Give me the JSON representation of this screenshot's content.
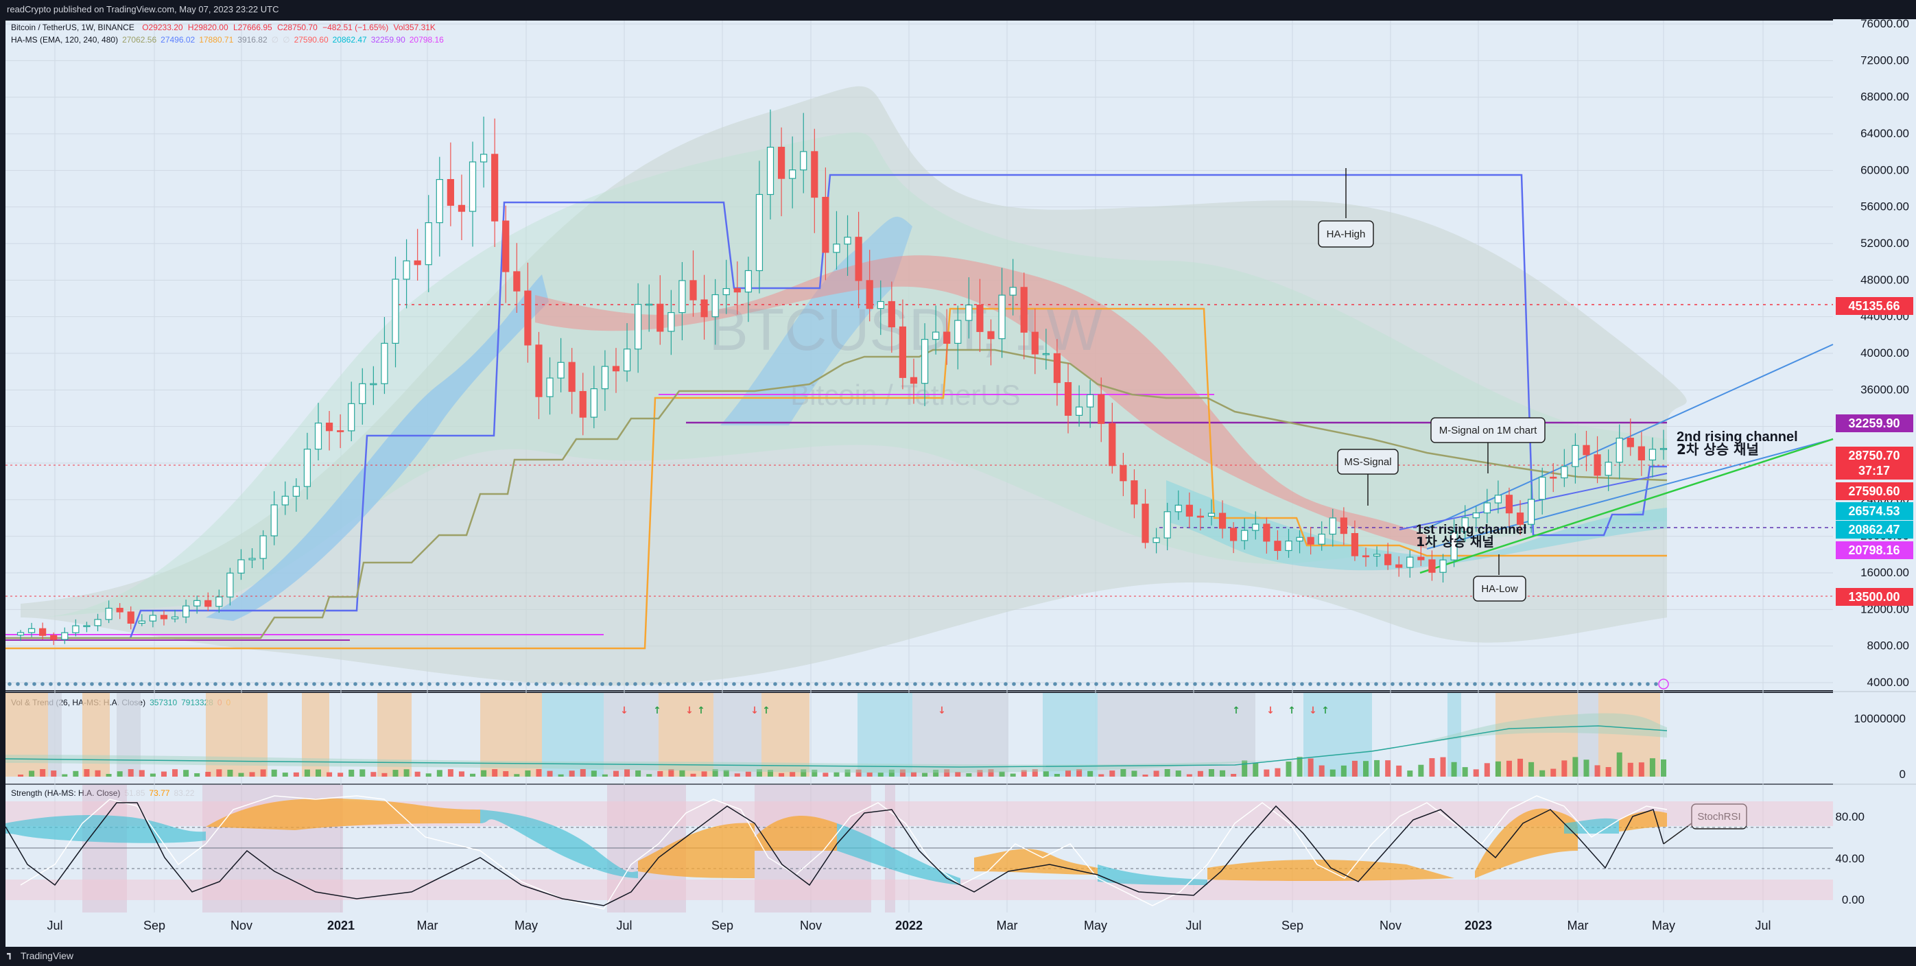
{
  "publish_line": "readCrypto published on TradingView.com, May 07, 2023 23:22 UTC",
  "footer_brand": "TradingView",
  "legend": {
    "symbol": "Bitcoin / TetherUS, 1W, BINANCE",
    "ohlc": {
      "O": "O29233.20",
      "H": "H29820.00",
      "L": "L27666.95",
      "C": "C28750.70",
      "chg": "−482.51 (−1.65%)",
      "vol": "Vol357.31K"
    },
    "hams": {
      "label": "HA-MS (EMA, 120, 240, 480)",
      "values": [
        {
          "text": "27062.56",
          "color": "#9ca067"
        },
        {
          "text": "27496.02",
          "color": "#5b7fff"
        },
        {
          "text": "17880.71",
          "color": "#f7a531"
        },
        {
          "text": "3916.82",
          "color": "#8a8f9c"
        },
        {
          "text": "∅",
          "color": "#d1d4dc"
        },
        {
          "text": "∅",
          "color": "#d1d4dc"
        },
        {
          "text": "27590.60",
          "color": "#ff5f5f"
        },
        {
          "text": "20862.47",
          "color": "#00bcd4"
        },
        {
          "text": "32259.90",
          "color": "#b84dff"
        },
        {
          "text": "20798.16",
          "color": "#e040fb"
        }
      ]
    },
    "vol_trend": {
      "label": "Vol & Trend (26, HA-MS: H.A. Close)",
      "values": [
        {
          "text": "357310",
          "color": "#26a69a"
        },
        {
          "text": "7913328",
          "color": "#26a69a"
        },
        {
          "text": "0",
          "color": "#ef5350"
        },
        {
          "text": "0",
          "color": "#ff9800"
        }
      ]
    },
    "strength": {
      "label": "Strength (HA-MS: H.A. Close)",
      "values": [
        {
          "text": "51.85",
          "color": "#d1d4dc"
        },
        {
          "text": "73.77",
          "color": "#ff9800"
        },
        {
          "text": "83.22",
          "color": "#d1d4dc"
        }
      ]
    }
  },
  "watermark": {
    "ticker": "BTCUSDT, 1W",
    "name": "Bitcoin / TetherUS"
  },
  "annotations": {
    "ha_high": "HA-High",
    "ha_low": "HA-Low",
    "ms_signal": "MS-Signal",
    "m_signal": "M-Signal on 1M chart",
    "ch2_en": "2nd rising channel",
    "ch2_ko": "2차 상승 채널",
    "ch1_en": "1st rising channel",
    "ch1_ko": "1차 상승 채널",
    "stochrsi": "StochRSI"
  },
  "chart_data": {
    "type": "candlestick",
    "title": "Bitcoin / TetherUS, 1W, BINANCE",
    "y_axis": {
      "ticks": [
        "76000.00",
        "72000.00",
        "68000.00",
        "64000.00",
        "60000.00",
        "56000.00",
        "52000.00",
        "48000.00",
        "44000.00",
        "40000.00",
        "36000.00",
        "32000.00",
        "28000.00",
        "24000.00",
        "20000.00",
        "16000.00",
        "12000.00",
        "8000.00",
        "4000.00"
      ],
      "ylim": [
        0,
        76000
      ]
    },
    "x_axis": {
      "ticks": [
        "Jul",
        "Sep",
        "Nov",
        "2021",
        "Mar",
        "May",
        "Jul",
        "Sep",
        "Nov",
        "2022",
        "Mar",
        "May",
        "Jul",
        "Sep",
        "Nov",
        "2023",
        "Mar",
        "May",
        "Jul"
      ]
    },
    "price_labels": [
      {
        "value": "45135.66",
        "color": "#f23645"
      },
      {
        "value": "32259.90",
        "color": "#9c27b0"
      },
      {
        "value": "28750.70",
        "sub": "37:17",
        "color": "#f23645"
      },
      {
        "value": "27590.60",
        "color": "#f23645"
      },
      {
        "value": "26574.53",
        "color": "#00bcd4"
      },
      {
        "value": "20862.47",
        "color": "#00bcd4"
      },
      {
        "value": "20798.16",
        "color": "#e040fb"
      },
      {
        "value": "13500.00",
        "color": "#f23645"
      }
    ],
    "horizontal_levels": [
      45135.66,
      32259.9,
      27590.6,
      20862.47,
      13500
    ],
    "weekly_close_approx": [
      {
        "date": "2020-06",
        "close": 9200
      },
      {
        "date": "2020-07",
        "close": 9500
      },
      {
        "date": "2020-08",
        "close": 11700
      },
      {
        "date": "2020-09",
        "close": 10700
      },
      {
        "date": "2020-10",
        "close": 13100
      },
      {
        "date": "2020-11",
        "close": 18200
      },
      {
        "date": "2020-12",
        "close": 28900
      },
      {
        "date": "2021-01",
        "close": 33100
      },
      {
        "date": "2021-02",
        "close": 45200
      },
      {
        "date": "2021-03",
        "close": 58800
      },
      {
        "date": "2021-04",
        "close": 57700
      },
      {
        "date": "2021-05",
        "close": 37300
      },
      {
        "date": "2021-06",
        "close": 35000
      },
      {
        "date": "2021-07",
        "close": 41500
      },
      {
        "date": "2021-08",
        "close": 47100
      },
      {
        "date": "2021-09",
        "close": 43800
      },
      {
        "date": "2021-10",
        "close": 61300
      },
      {
        "date": "2021-11",
        "close": 57000
      },
      {
        "date": "2021-12",
        "close": 46200
      },
      {
        "date": "2022-01",
        "close": 38500
      },
      {
        "date": "2022-02",
        "close": 43200
      },
      {
        "date": "2022-03",
        "close": 45500
      },
      {
        "date": "2022-04",
        "close": 37600
      },
      {
        "date": "2022-05",
        "close": 31800
      },
      {
        "date": "2022-06",
        "close": 19900
      },
      {
        "date": "2022-07",
        "close": 23300
      },
      {
        "date": "2022-08",
        "close": 20000
      },
      {
        "date": "2022-09",
        "close": 19400
      },
      {
        "date": "2022-10",
        "close": 20500
      },
      {
        "date": "2022-11",
        "close": 17200
      },
      {
        "date": "2022-12",
        "close": 16500
      },
      {
        "date": "2023-01",
        "close": 23100
      },
      {
        "date": "2023-02",
        "close": 23100
      },
      {
        "date": "2023-03",
        "close": 28400
      },
      {
        "date": "2023-04",
        "close": 29200
      },
      {
        "date": "2023-05",
        "close": 28750
      }
    ],
    "panes": {
      "volume": {
        "ticks": [
          "10000000",
          "0"
        ]
      },
      "strength": {
        "ticks": [
          "80.00",
          "40.00",
          "0.00"
        ]
      }
    }
  }
}
